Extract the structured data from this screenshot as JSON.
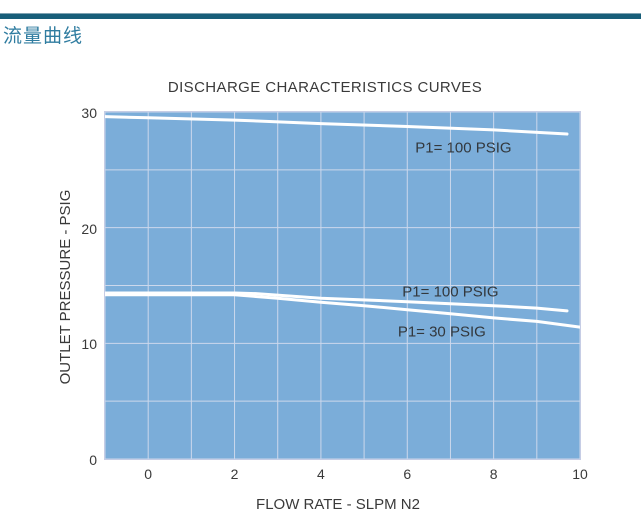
{
  "page": {
    "header_title": "流量曲线"
  },
  "colors": {
    "header_rule": "#175e79",
    "header_title": "#2f7ca0",
    "plot_background": "#7badd9",
    "gridline": "#ccd8ec",
    "curve": "#ffffff",
    "text": "#3a3a3a"
  },
  "chart_data": {
    "type": "line",
    "title": "DISCHARGE CHARACTERISTICS CURVES",
    "xlabel": "FLOW RATE - SLPM N2",
    "ylabel": "OUTLET PRESSURE - PSIG",
    "xlim": [
      -1,
      10
    ],
    "ylim": [
      0,
      30
    ],
    "x_ticks": [
      0,
      2,
      4,
      6,
      8,
      10
    ],
    "y_ticks": [
      0,
      10,
      20,
      30
    ],
    "x_grid_step": 1,
    "y_grid_step": 5,
    "grid": true,
    "legend_position": "none",
    "series": [
      {
        "name": "P1= 100 PSIG (upper curve)",
        "points": [
          [
            -1,
            29.6
          ],
          [
            0,
            29.5
          ],
          [
            2,
            29.3
          ],
          [
            4,
            29.0
          ],
          [
            6,
            28.75
          ],
          [
            8,
            28.45
          ],
          [
            9.7,
            28.1
          ]
        ]
      },
      {
        "name": "P1= 100 PSIG (middle curve)",
        "points": [
          [
            -1,
            14.35
          ],
          [
            2,
            14.35
          ],
          [
            2.5,
            14.3
          ],
          [
            4,
            13.9
          ],
          [
            6,
            13.6
          ],
          [
            8,
            13.25
          ],
          [
            9,
            13.05
          ],
          [
            9.7,
            12.8
          ]
        ]
      },
      {
        "name": "P1= 30 PSIG (lower curve)",
        "points": [
          [
            -1,
            14.2
          ],
          [
            2,
            14.2
          ],
          [
            3,
            13.9
          ],
          [
            4,
            13.55
          ],
          [
            5,
            13.25
          ],
          [
            6,
            12.9
          ],
          [
            7,
            12.55
          ],
          [
            8,
            12.2
          ],
          [
            9,
            11.9
          ],
          [
            10,
            11.4
          ]
        ]
      }
    ],
    "annotations": [
      {
        "text": "P1= 100 PSIG",
        "x": 7.3,
        "y": 26.9
      },
      {
        "text": "P1= 100 PSIG",
        "x": 7.0,
        "y": 14.45
      },
      {
        "text": "P1= 30 PSIG",
        "x": 6.8,
        "y": 11.0
      }
    ]
  }
}
